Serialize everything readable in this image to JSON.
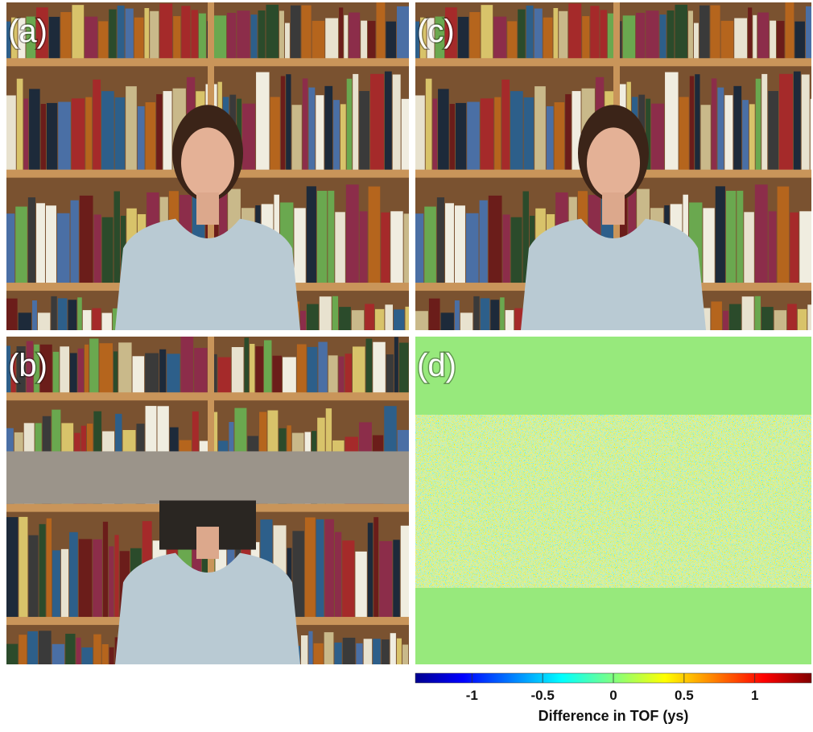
{
  "panels": [
    {
      "label": "(a)"
    },
    {
      "label": "(b)"
    },
    {
      "label": "(c)"
    },
    {
      "label": "(d)"
    }
  ],
  "colorbar": {
    "label": "Difference in TOF (ys)",
    "lim": [
      -1.4,
      1.4
    ],
    "ticks": [
      -1,
      -0.5,
      0,
      0.5,
      1
    ]
  }
}
